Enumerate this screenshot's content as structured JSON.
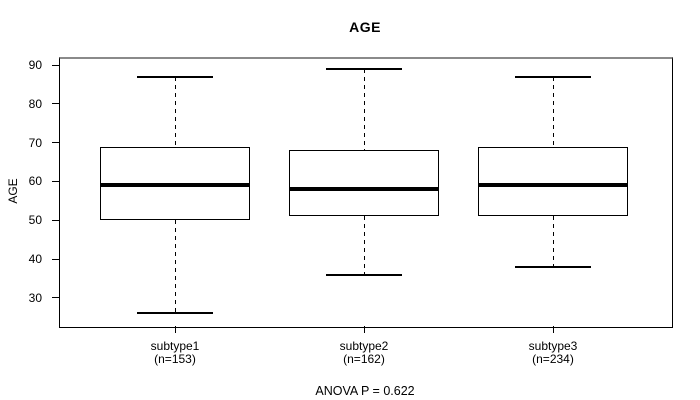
{
  "chart_data": {
    "type": "boxplot",
    "title": "AGE",
    "ylabel": "AGE",
    "xlabel": "",
    "y_ticks": [
      30,
      40,
      50,
      60,
      70,
      80,
      90
    ],
    "ylim": [
      23,
      92.1
    ],
    "grid": false,
    "legend": "none",
    "annotation": "ANOVA P = 0.622",
    "groups": [
      {
        "label": "subtype1",
        "sublabel": "(n=153)",
        "n": 153,
        "min": 26,
        "q1": 50,
        "median": 59,
        "q3": 69,
        "max": 87
      },
      {
        "label": "subtype2",
        "sublabel": "(n=162)",
        "n": 162,
        "min": 36,
        "q1": 51,
        "median": 58,
        "q3": 68,
        "max": 89
      },
      {
        "label": "subtype3",
        "sublabel": "(n=234)",
        "n": 234,
        "min": 38,
        "q1": 51,
        "median": 59,
        "q3": 69,
        "max": 87
      }
    ],
    "colors": {
      "line": "#000000",
      "plot_border_top": "#8a8a8a",
      "background": "#ffffff"
    }
  }
}
